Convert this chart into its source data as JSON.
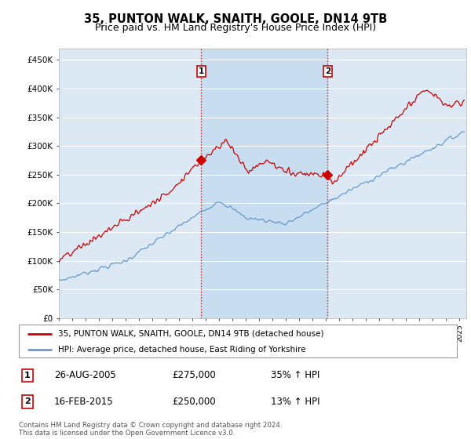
{
  "title": "35, PUNTON WALK, SNAITH, GOOLE, DN14 9TB",
  "subtitle": "Price paid vs. HM Land Registry's House Price Index (HPI)",
  "ylabel_ticks": [
    "£0",
    "£50K",
    "£100K",
    "£150K",
    "£200K",
    "£250K",
    "£300K",
    "£350K",
    "£400K",
    "£450K"
  ],
  "ytick_values": [
    0,
    50000,
    100000,
    150000,
    200000,
    250000,
    300000,
    350000,
    400000,
    450000
  ],
  "ylim": [
    0,
    470000
  ],
  "xlim_start": 1995.0,
  "xlim_end": 2025.5,
  "bg_color": "#dce9f5",
  "shade_color": "#c8ddf0",
  "red_line_color": "#cc0000",
  "blue_line_color": "#6699cc",
  "sale1_x": 2005.65,
  "sale1_y": 275000,
  "sale2_x": 2015.12,
  "sale2_y": 250000,
  "legend_label_red": "35, PUNTON WALK, SNAITH, GOOLE, DN14 9TB (detached house)",
  "legend_label_blue": "HPI: Average price, detached house, East Riding of Yorkshire",
  "annotation1_num": "1",
  "annotation1_date": "26-AUG-2005",
  "annotation1_price": "£275,000",
  "annotation1_hpi": "35% ↑ HPI",
  "annotation2_num": "2",
  "annotation2_date": "16-FEB-2015",
  "annotation2_price": "£250,000",
  "annotation2_hpi": "13% ↑ HPI",
  "footer": "Contains HM Land Registry data © Crown copyright and database right 2024.\nThis data is licensed under the Open Government Licence v3.0.",
  "grid_color": "#ffffff",
  "title_fontsize": 10.5,
  "subtitle_fontsize": 9
}
